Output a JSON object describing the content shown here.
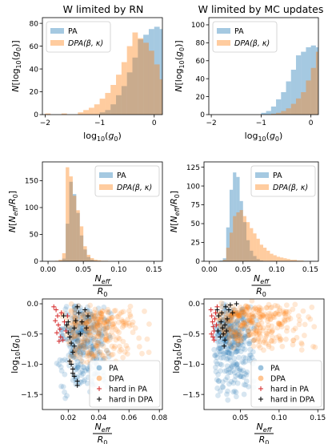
{
  "colors": {
    "pa": "#1f77b4",
    "dpa": "#ff7f0e",
    "hard_pa": "#d62728",
    "hard_dpa": "#000000"
  },
  "columns": [
    {
      "title": "W limited by RN"
    },
    {
      "title": "W limited by MC updates"
    }
  ],
  "chart_data": [
    {
      "id": "p00",
      "type": "histogram",
      "col": 0,
      "row": 0,
      "xlabel": "log10(g0)",
      "ylabel": "N[log10(g0)]",
      "xlim": [
        -2.05,
        0.15
      ],
      "ylim": [
        0,
        85
      ],
      "xticks": [
        -2,
        -1,
        0
      ],
      "yticks": [
        0,
        20,
        40,
        60,
        80
      ],
      "xtick_labels": [
        "−2",
        "−1",
        "0"
      ],
      "ytick_labels": [
        "0",
        "20",
        "40",
        "60",
        "80"
      ],
      "legend_position": "top-left",
      "bin_start": -2.0,
      "bin_width": 0.1,
      "series": [
        {
          "name": "PA",
          "color_key": "pa",
          "values": [
            0,
            0,
            0,
            0,
            0,
            0,
            0,
            0,
            0,
            0,
            2,
            4,
            9,
            17,
            25,
            37,
            50,
            66,
            70,
            75,
            77,
            75,
            68,
            62,
            40,
            26,
            13,
            0
          ]
        },
        {
          "name": "DPA(β, κ)",
          "color_key": "dpa",
          "values": [
            1,
            0,
            0,
            1,
            0,
            0,
            2,
            4,
            6,
            9,
            14,
            19,
            26,
            35,
            46,
            60,
            72,
            67,
            63,
            56,
            44,
            31,
            22,
            12,
            7,
            3,
            1,
            0
          ]
        }
      ]
    },
    {
      "id": "p01",
      "type": "histogram",
      "col": 1,
      "row": 0,
      "xlabel": "log10(g0)",
      "ylabel": "N[log10(g0)]",
      "xlim": [
        -2.05,
        0.15
      ],
      "ylim": [
        0,
        108
      ],
      "xticks": [
        -2,
        -1,
        0
      ],
      "yticks": [
        0,
        20,
        40,
        60,
        80,
        100
      ],
      "xtick_labels": [
        "−2",
        "−1",
        "0"
      ],
      "ytick_labels": [
        "0",
        "20",
        "40",
        "60",
        "80",
        "100"
      ],
      "legend_position": "top-left",
      "bin_start": -2.0,
      "bin_width": 0.1,
      "series": [
        {
          "name": "PA",
          "color_key": "pa",
          "values": [
            0,
            0,
            0,
            0,
            0,
            0,
            0,
            0,
            0,
            0,
            2,
            4,
            9,
            17,
            25,
            37,
            50,
            66,
            70,
            75,
            77,
            75,
            68,
            62,
            40,
            26,
            13,
            0
          ]
        },
        {
          "name": "DPA(β, κ)",
          "color_key": "dpa",
          "values": [
            0,
            0,
            0,
            0,
            0,
            0,
            0,
            0,
            0,
            0,
            0,
            0,
            1,
            2,
            4,
            7,
            12,
            18,
            25,
            38,
            52,
            70,
            86,
            99,
            103,
            88,
            60,
            0
          ]
        }
      ]
    },
    {
      "id": "p10",
      "type": "histogram",
      "col": 0,
      "row": 1,
      "xlabel": "Neff / R0",
      "ylabel": "N[Neff/R0]",
      "xlim": [
        -0.008,
        0.162
      ],
      "ylim": [
        0,
        185
      ],
      "xticks": [
        0,
        0.05,
        0.1,
        0.15
      ],
      "yticks": [
        0,
        50,
        100,
        150
      ],
      "xtick_labels": [
        "0.00",
        "0.05",
        "0.10",
        "0.15"
      ],
      "ytick_labels": [
        "0",
        "50",
        "100",
        "150"
      ],
      "legend_position": "top-right",
      "bin_start": 0.0,
      "bin_width": 0.005,
      "series": [
        {
          "name": "PA",
          "color_key": "pa",
          "values": [
            0,
            0,
            0,
            1,
            5,
            70,
            148,
            125,
            90,
            48,
            22,
            8,
            3,
            1,
            0,
            0,
            0,
            0,
            0,
            0,
            0,
            0,
            0,
            0,
            0,
            0,
            0,
            0,
            0,
            0,
            0,
            0
          ]
        },
        {
          "name": "DPA(β, κ)",
          "color_key": "dpa",
          "values": [
            0,
            0,
            1,
            3,
            15,
            175,
            158,
            122,
            95,
            65,
            28,
            12,
            6,
            3,
            2,
            1,
            1,
            0,
            0,
            0,
            0,
            0,
            0,
            0,
            0,
            0,
            0,
            0,
            0,
            0,
            0,
            0
          ]
        }
      ]
    },
    {
      "id": "p11",
      "type": "histogram",
      "col": 1,
      "row": 1,
      "xlabel": "Neff / R0",
      "ylabel": "N[Neff/R0]",
      "xlim": [
        -0.008,
        0.162
      ],
      "ylim": [
        0,
        132
      ],
      "xticks": [
        0,
        0.05,
        0.1,
        0.15
      ],
      "yticks": [
        0,
        25,
        50,
        75,
        100,
        125
      ],
      "xtick_labels": [
        "0.00",
        "0.05",
        "0.10",
        "0.15"
      ],
      "ytick_labels": [
        "0",
        "25",
        "50",
        "75",
        "100",
        "125"
      ],
      "legend_position": "top-right",
      "bin_start": 0.0,
      "bin_width": 0.005,
      "series": [
        {
          "name": "PA",
          "color_key": "pa",
          "values": [
            0,
            0,
            0,
            1,
            4,
            45,
            95,
            118,
            112,
            80,
            52,
            28,
            14,
            7,
            3,
            1,
            0,
            0,
            0,
            0,
            0,
            0,
            0,
            0,
            0,
            0,
            0,
            0,
            0,
            0,
            0,
            0
          ]
        },
        {
          "name": "DPA(β, κ)",
          "color_key": "dpa",
          "values": [
            0,
            0,
            0,
            0,
            2,
            18,
            38,
            60,
            65,
            68,
            60,
            52,
            44,
            37,
            30,
            22,
            18,
            14,
            10,
            8,
            6,
            5,
            4,
            3,
            2,
            2,
            1,
            1,
            0,
            0,
            0,
            0
          ]
        }
      ]
    },
    {
      "id": "p20",
      "type": "scatter",
      "col": 0,
      "row": 2,
      "xlabel": "Neff / R0",
      "ylabel": "log10[g0]",
      "xlim": [
        0.003,
        0.082
      ],
      "ylim": [
        -1.75,
        0.08
      ],
      "xticks": [
        0.02,
        0.04,
        0.06,
        0.08
      ],
      "yticks": [
        0,
        -0.5,
        -1,
        -1.5
      ],
      "xtick_labels": [
        "0.02",
        "0.04",
        "0.06",
        "0.08"
      ],
      "ytick_labels": [
        "0.0",
        "−0.5",
        "−1.0",
        "−1.5"
      ],
      "legend_position": "lower-right",
      "clouds": [
        {
          "series": "PA",
          "n": 320,
          "seed": 11,
          "x_range": [
            0.012,
            0.05
          ],
          "y_range": [
            -1.6,
            0.02
          ],
          "x_mode": 0.026,
          "y_mode": -0.35
        },
        {
          "series": "DPA",
          "n": 260,
          "seed": 23,
          "x_range": [
            0.015,
            0.075
          ],
          "y_range": [
            -1.05,
            0.02
          ],
          "x_mode": 0.035,
          "y_mode": -0.3
        }
      ],
      "hard_pa": [
        [
          0.0105,
          -0.05
        ],
        [
          0.012,
          -0.1
        ],
        [
          0.013,
          -0.2
        ],
        [
          0.0115,
          -0.28
        ],
        [
          0.0135,
          -0.35
        ],
        [
          0.0145,
          -0.42
        ],
        [
          0.0125,
          -0.48
        ],
        [
          0.015,
          -0.55
        ],
        [
          0.0165,
          -0.6
        ],
        [
          0.0155,
          -0.15
        ],
        [
          0.0175,
          -0.3
        ],
        [
          0.0185,
          -0.45
        ],
        [
          0.014,
          -0.62
        ],
        [
          0.0195,
          -0.2
        ]
      ],
      "hard_dpa": [
        [
          0.017,
          -0.2
        ],
        [
          0.019,
          -0.35
        ],
        [
          0.02,
          -0.48
        ],
        [
          0.021,
          -0.55
        ],
        [
          0.022,
          -0.65
        ],
        [
          0.024,
          -0.4
        ],
        [
          0.025,
          -0.28
        ],
        [
          0.027,
          -0.15
        ],
        [
          0.023,
          -0.8
        ],
        [
          0.022,
          -1.0
        ],
        [
          0.023,
          -1.08
        ],
        [
          0.024,
          -1.2
        ],
        [
          0.026,
          -1.28
        ],
        [
          0.026,
          -1.35
        ],
        [
          0.028,
          -0.5
        ],
        [
          0.029,
          -0.3
        ],
        [
          0.031,
          -0.1
        ],
        [
          0.033,
          -0.2
        ],
        [
          0.032,
          -0.4
        ],
        [
          0.021,
          -0.95
        ],
        [
          0.024,
          -0.7
        ],
        [
          0.02,
          -0.3
        ],
        [
          0.026,
          -0.05
        ],
        [
          0.023,
          -1.15
        ]
      ],
      "legend": [
        "PA",
        "DPA",
        "hard in PA",
        "hard in DPA"
      ]
    },
    {
      "id": "p21",
      "type": "scatter",
      "col": 1,
      "row": 2,
      "xlabel": "Neff / R0",
      "ylabel": "log10[g0]",
      "xlim": [
        0.003,
        0.158
      ],
      "ylim": [
        -1.75,
        0.08
      ],
      "xticks": [
        0.05,
        0.1,
        0.15
      ],
      "yticks": [
        0,
        -0.5,
        -1,
        -1.5
      ],
      "xtick_labels": [
        "0.05",
        "0.10",
        "0.15"
      ],
      "ytick_labels": [
        "0.0",
        "−0.5",
        "−1.0",
        "−1.5"
      ],
      "legend_position": "lower-right",
      "clouds": [
        {
          "series": "PA",
          "n": 320,
          "seed": 37,
          "x_range": [
            0.012,
            0.075
          ],
          "y_range": [
            -1.65,
            0.02
          ],
          "x_mode": 0.035,
          "y_mode": -0.45
        },
        {
          "series": "DPA",
          "n": 300,
          "seed": 53,
          "x_range": [
            0.015,
            0.15
          ],
          "y_range": [
            -0.85,
            0.05
          ],
          "x_mode": 0.05,
          "y_mode": -0.15
        }
      ],
      "hard_pa": [
        [
          0.012,
          -0.1
        ],
        [
          0.013,
          -0.2
        ],
        [
          0.014,
          -0.3
        ],
        [
          0.015,
          -0.38
        ],
        [
          0.016,
          -0.45
        ],
        [
          0.0125,
          -0.5
        ],
        [
          0.017,
          -0.25
        ],
        [
          0.018,
          -0.15
        ],
        [
          0.0145,
          -0.55
        ],
        [
          0.019,
          -0.35
        ],
        [
          0.02,
          -0.05
        ],
        [
          0.016,
          -0.6
        ]
      ],
      "hard_dpa": [
        [
          0.02,
          -0.1
        ],
        [
          0.022,
          -0.2
        ],
        [
          0.025,
          -0.3
        ],
        [
          0.027,
          -0.4
        ],
        [
          0.028,
          -0.5
        ],
        [
          0.03,
          -0.6
        ],
        [
          0.03,
          -0.35
        ],
        [
          0.033,
          -0.25
        ],
        [
          0.035,
          -0.1
        ],
        [
          0.037,
          -0.02
        ],
        [
          0.04,
          -0.15
        ],
        [
          0.032,
          -0.45
        ],
        [
          0.029,
          -0.7
        ],
        [
          0.045,
          0.0
        ],
        [
          0.024,
          -0.55
        ],
        [
          0.026,
          -0.15
        ],
        [
          0.031,
          -0.05
        ],
        [
          0.021,
          -0.45
        ]
      ],
      "legend": [
        "PA",
        "DPA",
        "hard in PA",
        "hard in DPA"
      ]
    }
  ]
}
